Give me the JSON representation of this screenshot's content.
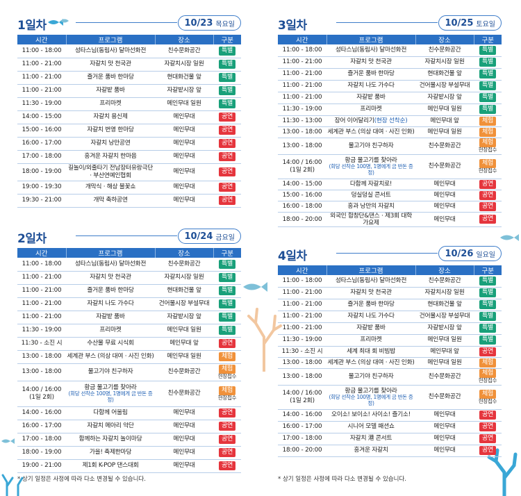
{
  "headers": [
    "시간",
    "프로그램",
    "장소",
    "구분"
  ],
  "footer": "* 상기 일정은 사정에 따라 다소 변경될 수 있습니다.",
  "colors": {
    "special": "#19a07a",
    "perform": "#e5353d",
    "experience": "#f0913a",
    "accent": "#2a70c4"
  },
  "days": [
    {
      "title": "1일차",
      "date": "10/23",
      "dow": "목요일",
      "rows": [
        {
          "time": "11:00 - 18:00",
          "program": "성타스님(동림사) 달마선화전",
          "place": "친수문화공간",
          "type": "특별",
          "kind": "special"
        },
        {
          "time": "11:00 - 21:00",
          "program": "자갈치 맛 천국관",
          "place": "자갈치시장 일원",
          "type": "특별",
          "kind": "special"
        },
        {
          "time": "11:00 - 21:00",
          "program": "즐거운 품바 한마당",
          "place": "현대화건물 앞",
          "type": "특별",
          "kind": "special"
        },
        {
          "time": "11:00 - 21:00",
          "program": "자갈밭 품바",
          "place": "자갈밭시장 앞",
          "type": "특별",
          "kind": "special"
        },
        {
          "time": "11:30 - 19:00",
          "program": "프리마켓",
          "place": "메인무대 일원",
          "type": "특별",
          "kind": "special"
        },
        {
          "time": "14:00 - 15:00",
          "program": "자갈치 용신제",
          "place": "메인무대",
          "type": "공연",
          "kind": "perform"
        },
        {
          "time": "15:00 - 16:00",
          "program": "자갈치 번영 한마당",
          "place": "메인무대",
          "type": "공연",
          "kind": "perform"
        },
        {
          "time": "16:00 - 17:00",
          "program": "자갈치 낭만공연",
          "place": "메인무대",
          "type": "공연",
          "kind": "perform"
        },
        {
          "time": "17:00 - 18:00",
          "program": "흥겨운 자갈치 한마음",
          "place": "메인무대",
          "type": "공연",
          "kind": "perform"
        },
        {
          "time": "18:00 - 19:00",
          "program": "길놀이/외줄타기 전남장터유랑극단 · 부산연예인협회",
          "place": "메인무대",
          "type": "공연",
          "kind": "perform"
        },
        {
          "time": "19:00 - 19:30",
          "program": "개막식 · 해상 불꽃쇼",
          "place": "메인무대",
          "type": "공연",
          "kind": "perform"
        },
        {
          "time": "19:30 - 21:00",
          "program": "개막 축하공연",
          "place": "메인무대",
          "type": "공연",
          "kind": "perform"
        }
      ]
    },
    {
      "title": "2일차",
      "date": "10/24",
      "dow": "금요일",
      "rows": [
        {
          "time": "11:00 - 18:00",
          "program": "성타스님(동림사) 달마선화전",
          "place": "친수문화공간",
          "type": "특별",
          "kind": "special"
        },
        {
          "time": "11:00 - 21:00",
          "program": "자갈치 맛 천국관",
          "place": "자갈치시장 일원",
          "type": "특별",
          "kind": "special"
        },
        {
          "time": "11:00 - 21:00",
          "program": "즐거운 품바 한마당",
          "place": "현대화건물 앞",
          "type": "특별",
          "kind": "special"
        },
        {
          "time": "11:00 - 21:00",
          "program": "자갈치 나도 가수다",
          "place": "건어물시장 부설무대",
          "type": "특별",
          "kind": "special"
        },
        {
          "time": "11:00 - 21:00",
          "program": "자갈밭 품바",
          "place": "자갈밭시장 앞",
          "type": "특별",
          "kind": "special"
        },
        {
          "time": "11:30 - 19:00",
          "program": "프리마켓",
          "place": "메인무대 일원",
          "type": "특별",
          "kind": "special"
        },
        {
          "time": "11:30 - 소진 시",
          "program": "수산물 무료 시식회",
          "place": "메인무대 앞",
          "type": "공연",
          "kind": "perform"
        },
        {
          "time": "13:00 - 18:00",
          "program": "세계관 부스 (의상 대여 · 사진 인화)",
          "place": "메인무대 일원",
          "type": "체험",
          "kind": "experience"
        },
        {
          "time": "13:00 - 18:00",
          "program": "물고기야 친구하자",
          "place": "친수문화공간",
          "type": "체험",
          "kind": "experience",
          "sub": "현장접수"
        },
        {
          "time": "14:00 / 16:00",
          "time2": "(1일 2회)",
          "program": "황금 물고기를 찾아라",
          "program_note": "(회당 선착순 100명, 1명에게 금 반돈 증정)",
          "place": "친수문화공간",
          "type": "체험",
          "kind": "experience",
          "sub": "현장접수"
        },
        {
          "time": "14:00 - 16:00",
          "program": "다함께 어울림",
          "place": "메인무대",
          "type": "공연",
          "kind": "perform"
        },
        {
          "time": "16:00 - 17:00",
          "program": "자갈치 메아리 악단",
          "place": "메인무대",
          "type": "공연",
          "kind": "perform"
        },
        {
          "time": "17:00 - 18:00",
          "program": "함께하는 자갈치 놀이마당",
          "place": "메인무대",
          "type": "공연",
          "kind": "perform"
        },
        {
          "time": "18:00 - 19:00",
          "program": "가을! 축제한마당",
          "place": "메인무대",
          "type": "공연",
          "kind": "perform"
        },
        {
          "time": "19:00 - 21:00",
          "program": "제1회 K-POP 댄스대회",
          "place": "메인무대",
          "type": "공연",
          "kind": "perform"
        }
      ]
    },
    {
      "title": "3일차",
      "date": "10/25",
      "dow": "토요일",
      "rows": [
        {
          "time": "11:00 - 18:00",
          "program": "성타스님(동림사) 달마선화전",
          "place": "친수문화공간",
          "type": "특별",
          "kind": "special"
        },
        {
          "time": "11:00 - 21:00",
          "program": "자갈치 맛 천국관",
          "place": "자갈치시장 일원",
          "type": "특별",
          "kind": "special"
        },
        {
          "time": "11:00 - 21:00",
          "program": "즐거운 품바 한마당",
          "place": "현대화건물 앞",
          "type": "특별",
          "kind": "special"
        },
        {
          "time": "11:00 - 21:00",
          "program": "자갈치 나도 가수다",
          "place": "건어물시장 부설무대",
          "type": "특별",
          "kind": "special"
        },
        {
          "time": "11:00 - 21:00",
          "program": "자갈밭 품바",
          "place": "자갈밭시장 앞",
          "type": "특별",
          "kind": "special"
        },
        {
          "time": "11:30 - 19:00",
          "program": "프리마켓",
          "place": "메인무대 일원",
          "type": "특별",
          "kind": "special"
        },
        {
          "time": "11:30 - 13:00",
          "program": "장어 이어달리기",
          "program_note_inline": "(현장 선착순)",
          "place": "메인무대 앞",
          "type": "체험",
          "kind": "experience"
        },
        {
          "time": "13:00 - 18:00",
          "program": "세계관 부스 (의상 대여 · 사진 인화)",
          "place": "메인무대 일원",
          "type": "체험",
          "kind": "experience"
        },
        {
          "time": "13:00 - 18:00",
          "program": "물고기야 친구하자",
          "place": "친수문화공간",
          "type": "체험",
          "kind": "experience",
          "sub": "현장접수"
        },
        {
          "time": "14:00 / 16:00",
          "time2": "(1일 2회)",
          "program": "황금 물고기를 찾아라",
          "program_note": "(회당 선착순 100명, 1명에게 금 반돈 증정)",
          "place": "친수문화공간",
          "type": "체험",
          "kind": "experience",
          "sub": "현장접수"
        },
        {
          "time": "14:00 - 15:00",
          "program": "다함께 자갈치로!",
          "place": "메인무대",
          "type": "공연",
          "kind": "perform"
        },
        {
          "time": "15:00 - 16:00",
          "program": "덩실덩실 콘서트",
          "place": "메인무대",
          "type": "공연",
          "kind": "perform"
        },
        {
          "time": "16:00 - 18:00",
          "program": "흥과 낭만의 자갈치",
          "place": "메인무대",
          "type": "공연",
          "kind": "perform"
        },
        {
          "time": "18:00 - 20:00",
          "program": "외국인 합창단&댄스 · 제3회 대학 가요제",
          "place": "메인무대",
          "type": "공연",
          "kind": "perform"
        }
      ]
    },
    {
      "title": "4일차",
      "date": "10/26",
      "dow": "일요일",
      "rows": [
        {
          "time": "11:00 - 18:00",
          "program": "성타스님(동림사) 달마선화전",
          "place": "친수문화공간",
          "type": "특별",
          "kind": "special"
        },
        {
          "time": "11:00 - 21:00",
          "program": "자갈치 맛 천국관",
          "place": "자갈치시장 일원",
          "type": "특별",
          "kind": "special"
        },
        {
          "time": "11:00 - 21:00",
          "program": "즐거운 품바 한마당",
          "place": "현대화건물 앞",
          "type": "특별",
          "kind": "special"
        },
        {
          "time": "11:00 - 21:00",
          "program": "자갈치 나도 가수다",
          "place": "건어물시장 부설무대",
          "type": "특별",
          "kind": "special"
        },
        {
          "time": "11:00 - 21:00",
          "program": "자갈밭 품바",
          "place": "자갈밭시장 앞",
          "type": "특별",
          "kind": "special"
        },
        {
          "time": "11:30 - 19:00",
          "program": "프리마켓",
          "place": "메인무대 일원",
          "type": "특별",
          "kind": "special"
        },
        {
          "time": "11:30 - 소진 시",
          "program": "세계 최대 회 비빔밥",
          "place": "메인무대 앞",
          "type": "공연",
          "kind": "perform"
        },
        {
          "time": "13:00 - 18:00",
          "program": "세계관 부스 (의상 대여 · 사진 인화)",
          "place": "메인무대 일원",
          "type": "체험",
          "kind": "experience"
        },
        {
          "time": "13:00 - 18:00",
          "program": "물고기야 친구하자",
          "place": "친수문화공간",
          "type": "체험",
          "kind": "experience",
          "sub": "현장접수"
        },
        {
          "time": "14:00 / 16:00",
          "time2": "(1일 2회)",
          "program": "황금 물고기를 찾아라",
          "program_note": "(회당 선착순 100명, 1명에게 금 반돈 증정)",
          "place": "친수문화공간",
          "type": "체험",
          "kind": "experience",
          "sub": "현장접수"
        },
        {
          "time": "14:00 - 16:00",
          "program": "오이소! 보이소! 사이소! 즐기소!",
          "place": "메인무대",
          "type": "공연",
          "kind": "perform"
        },
        {
          "time": "16:00 - 17:00",
          "program": "시니어 모델 패션쇼",
          "place": "메인무대",
          "type": "공연",
          "kind": "perform"
        },
        {
          "time": "17:00 - 18:00",
          "program": "자갈치 港 콘서트",
          "place": "메인무대",
          "type": "공연",
          "kind": "perform"
        },
        {
          "time": "18:00 - 20:00",
          "program": "흥겨운 자갈치",
          "place": "메인무대",
          "type": "공연",
          "kind": "perform"
        }
      ]
    }
  ]
}
